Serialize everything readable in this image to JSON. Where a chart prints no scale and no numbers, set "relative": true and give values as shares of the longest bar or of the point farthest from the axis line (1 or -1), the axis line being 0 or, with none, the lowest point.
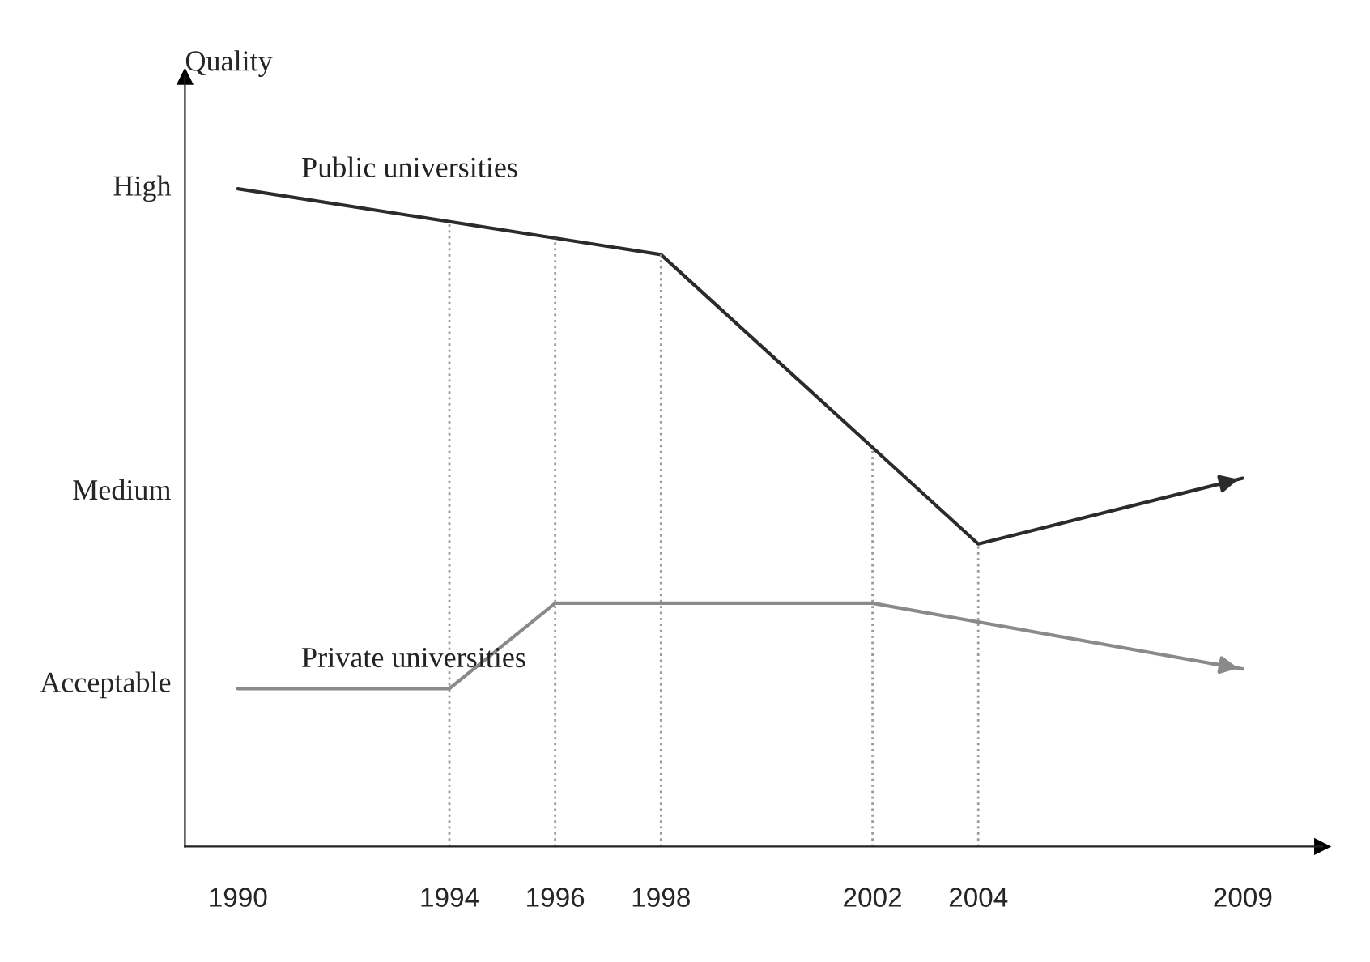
{
  "chart_data": {
    "type": "line",
    "ylabel": "Quality",
    "relative": true,
    "series": [
      {
        "name": "Public universities",
        "color": "#2b2b2b",
        "x": [
          1990,
          1998,
          2004,
          2009
        ],
        "values": [
          1.0,
          0.9,
          0.46,
          0.56
        ]
      },
      {
        "name": "Private universities",
        "color": "#8a8a8a",
        "x": [
          1990,
          1994,
          1996,
          2002,
          2009
        ],
        "values": [
          0.24,
          0.24,
          0.37,
          0.37,
          0.27
        ]
      }
    ],
    "xlim": [
      1989,
      2010.5
    ],
    "xticks": [
      1990,
      1994,
      1996,
      1998,
      2002,
      2004,
      2009
    ],
    "annotations": [
      "High",
      "Medium",
      "Acceptable"
    ],
    "ref_lines": [
      {
        "axis": "x",
        "value": 1994,
        "line_style": "dotted",
        "color": "#9a9a9a"
      },
      {
        "axis": "x",
        "value": 1996,
        "line_style": "dotted",
        "color": "#9a9a9a"
      },
      {
        "axis": "x",
        "value": 1998,
        "line_style": "dotted",
        "color": "#9a9a9a"
      },
      {
        "axis": "x",
        "value": 2002,
        "line_style": "dotted",
        "color": "#9a9a9a"
      },
      {
        "axis": "x",
        "value": 2004,
        "line_style": "dotted",
        "color": "#9a9a9a"
      }
    ],
    "grid": false,
    "legend": false,
    "marker": "none",
    "line_style": "solid"
  }
}
